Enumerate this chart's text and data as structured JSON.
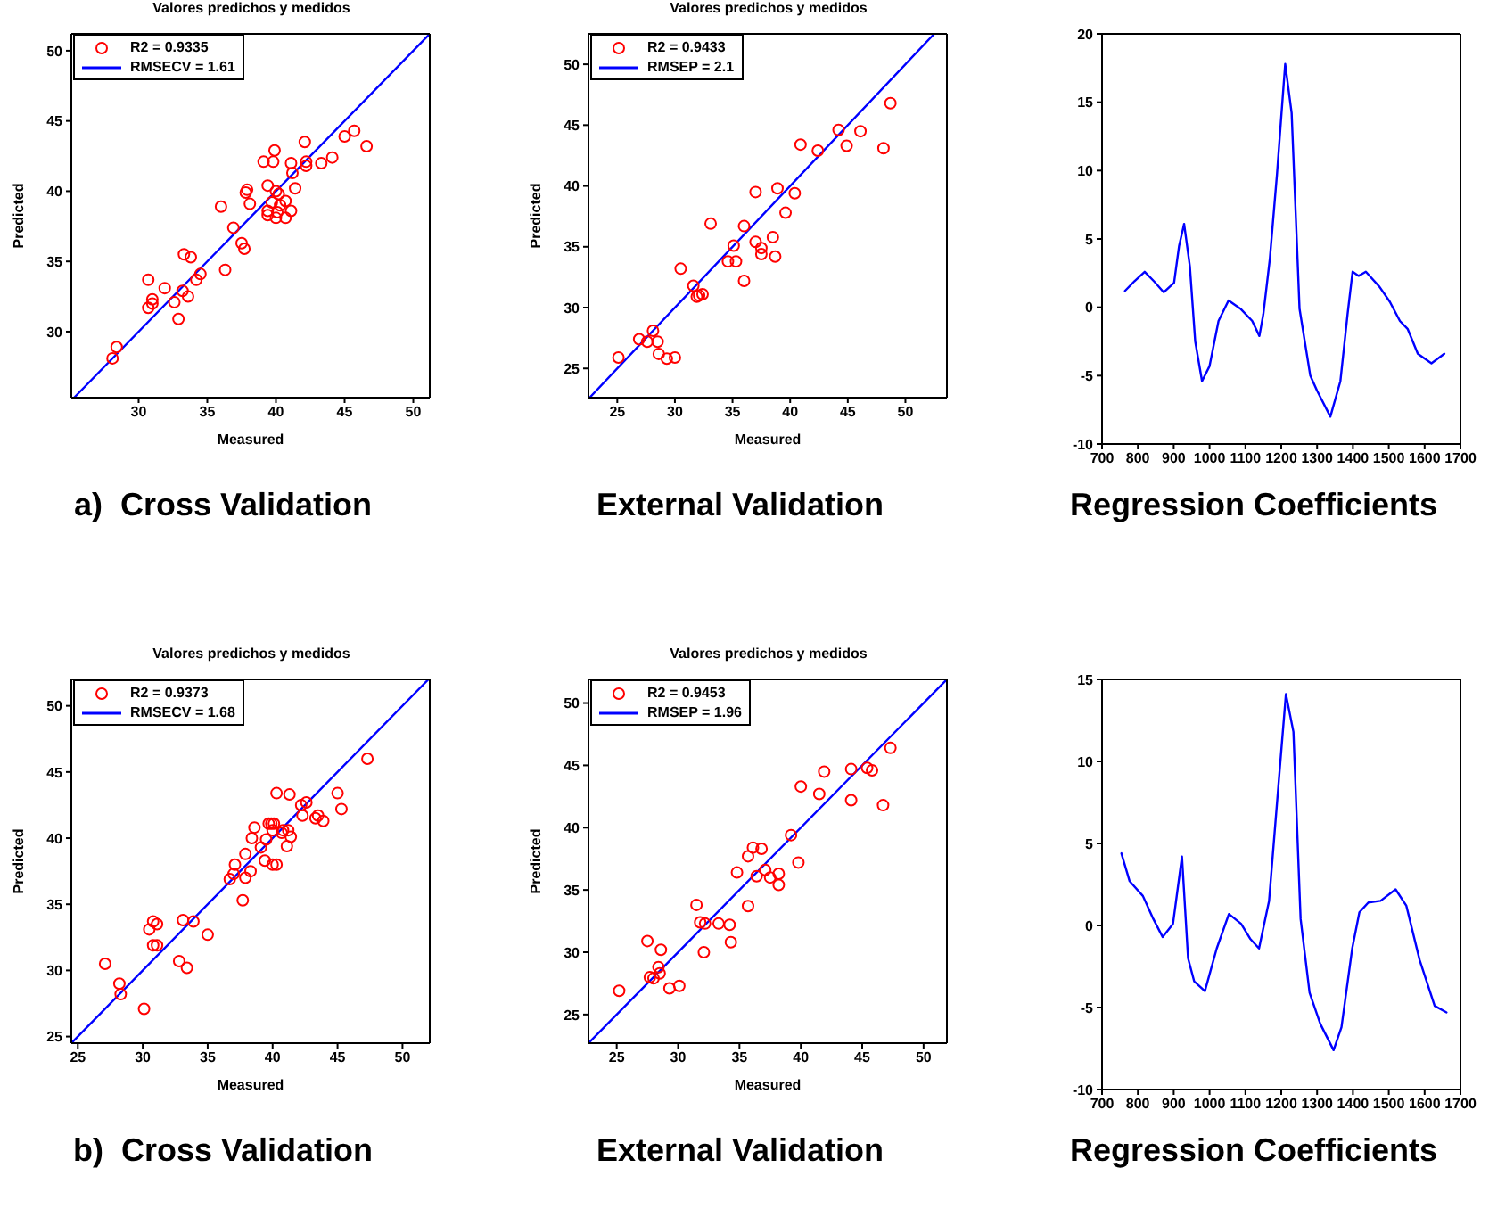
{
  "chart_data": [
    {
      "type": "scatter",
      "title": "Valores predichos y medidos",
      "xlabel": "Measured",
      "ylabel": "Predicted",
      "xlim": [
        25.1,
        51.2
      ],
      "ylim": [
        25.3,
        51.2
      ],
      "xticks": [
        30,
        35,
        40,
        45,
        50
      ],
      "yticks": [
        30,
        35,
        40,
        45,
        50
      ],
      "legend": "top left",
      "annotations": [
        "a)  Cross Validation"
      ],
      "series": [
        {
          "name": "R2 = 0.9335",
          "color": "#ff0000",
          "marker": "circle",
          "x": [
            28.1,
            28.4,
            30.7,
            30.7,
            31.0,
            31.0,
            31.9,
            32.6,
            32.9,
            33.2,
            33.3,
            33.6,
            33.8,
            34.2,
            34.5,
            36.0,
            36.3,
            36.9,
            37.5,
            37.7,
            37.8,
            37.9,
            38.1,
            39.1,
            39.4,
            39.4,
            39.4,
            39.7,
            39.8,
            39.9,
            40.0,
            40.1,
            40.0,
            40.2,
            40.3,
            40.7,
            40.7,
            41.1,
            41.1,
            41.2,
            41.4,
            42.1,
            42.2,
            42.2,
            43.3,
            44.1,
            45.0,
            45.7,
            46.6
          ],
          "values": [
            28.1,
            28.9,
            33.7,
            31.7,
            32.3,
            32.0,
            33.1,
            32.1,
            30.9,
            32.9,
            35.5,
            32.5,
            35.3,
            33.7,
            34.1,
            38.9,
            34.4,
            37.4,
            36.3,
            35.9,
            39.9,
            40.1,
            39.1,
            42.1,
            40.4,
            38.6,
            38.3,
            39.2,
            42.1,
            42.9,
            40.0,
            38.5,
            38.1,
            39.8,
            39.0,
            39.3,
            38.1,
            38.6,
            42.0,
            41.3,
            40.2,
            43.5,
            42.1,
            41.8,
            42.0,
            42.4,
            43.9,
            44.3,
            43.2
          ]
        },
        {
          "type": "line",
          "name": "RMSECV = 1.61",
          "color": "#0000ff",
          "x": [
            25.3,
            51.2
          ],
          "values": [
            25.3,
            51.2
          ]
        }
      ]
    },
    {
      "type": "scatter",
      "title": "Valores predichos y medidos",
      "xlabel": "Measured",
      "ylabel": "Predicted",
      "xlim": [
        22.5,
        53.6
      ],
      "ylim": [
        22.6,
        52.5
      ],
      "xticks": [
        25,
        30,
        35,
        40,
        45,
        50
      ],
      "yticks": [
        25,
        30,
        35,
        40,
        45,
        50
      ],
      "legend": "top left",
      "annotations": [
        "External Validation"
      ],
      "series": [
        {
          "name": "R2 = 0.9433",
          "color": "#ff0000",
          "marker": "circle",
          "x": [
            25.1,
            26.9,
            27.6,
            28.1,
            28.5,
            28.6,
            29.3,
            30.0,
            30.5,
            31.6,
            31.9,
            32.1,
            32.4,
            33.1,
            34.6,
            35.1,
            35.3,
            36.0,
            36.0,
            37.0,
            37.0,
            37.5,
            37.5,
            38.5,
            38.7,
            38.9,
            39.6,
            40.4,
            40.9,
            42.4,
            44.2,
            44.9,
            46.1,
            48.1,
            48.7
          ],
          "values": [
            25.9,
            27.4,
            27.2,
            28.1,
            27.2,
            26.2,
            25.8,
            25.9,
            33.2,
            31.8,
            30.9,
            31.0,
            31.1,
            36.9,
            33.8,
            35.1,
            33.8,
            36.7,
            32.2,
            39.5,
            35.4,
            34.9,
            34.4,
            35.8,
            34.2,
            39.8,
            37.8,
            39.4,
            43.4,
            42.9,
            44.6,
            43.3,
            44.5,
            43.1,
            46.8
          ]
        },
        {
          "type": "line",
          "name": "RMSEP = 2.1",
          "color": "#0000ff",
          "x": [
            22.6,
            52.5
          ],
          "values": [
            22.6,
            52.5
          ]
        }
      ]
    },
    {
      "type": "line",
      "xlim": [
        700,
        1700
      ],
      "ylim": [
        -10,
        20
      ],
      "xticks": [
        700,
        800,
        900,
        1000,
        1100,
        1200,
        1300,
        1400,
        1500,
        1600,
        1700
      ],
      "yticks": [
        -10,
        -5,
        0,
        5,
        10,
        15,
        20
      ],
      "annotations": [
        "Regression Coefficients"
      ],
      "series": [
        {
          "color": "#0000ff",
          "x": [
            764,
            790,
            819,
            845,
            872,
            901,
            915,
            929,
            945,
            960,
            979,
            1000,
            1025,
            1053,
            1086,
            1119,
            1139,
            1150,
            1168,
            1188,
            1211,
            1229,
            1251,
            1281,
            1300,
            1337,
            1365,
            1385,
            1399,
            1416,
            1436,
            1474,
            1503,
            1531,
            1553,
            1581,
            1619,
            1655
          ],
          "values": [
            1.2,
            1.9,
            2.6,
            1.9,
            1.1,
            1.8,
            4.5,
            6.1,
            3.0,
            -2.5,
            -5.4,
            -4.3,
            -1.0,
            0.5,
            -0.1,
            -1.0,
            -2.1,
            -0.5,
            3.5,
            9.7,
            17.8,
            14.2,
            -0.1,
            -5.0,
            -6.1,
            -8.0,
            -5.4,
            -0.5,
            2.6,
            2.3,
            2.6,
            1.5,
            0.4,
            -1.0,
            -1.6,
            -3.4,
            -4.1,
            -3.4
          ]
        }
      ]
    },
    {
      "type": "scatter",
      "title": "Valores predichos y medidos",
      "xlabel": "Measured",
      "ylabel": "Predicted",
      "xlim": [
        24.5,
        52.1
      ],
      "ylim": [
        24.5,
        52
      ],
      "xticks": [
        25,
        30,
        35,
        40,
        45,
        50
      ],
      "yticks": [
        25,
        30,
        35,
        40,
        45,
        50
      ],
      "legend": "top left",
      "annotations": [
        "b)  Cross Validation"
      ],
      "series": [
        {
          "name": "R2 = 0.9373",
          "color": "#ff0000",
          "marker": "circle",
          "x": [
            27.1,
            28.2,
            28.3,
            30.1,
            30.5,
            30.8,
            31.1,
            30.8,
            31.1,
            32.8,
            33.1,
            33.4,
            33.9,
            35.0,
            36.7,
            37.0,
            37.1,
            37.7,
            37.9,
            37.9,
            38.3,
            38.4,
            38.6,
            39.1,
            39.4,
            39.5,
            39.7,
            39.9,
            40.0,
            40.1,
            40.0,
            40.3,
            40.3,
            40.7,
            40.8,
            41.1,
            41.2,
            41.4,
            41.3,
            42.2,
            42.3,
            42.6,
            43.3,
            43.5,
            43.9,
            45.0,
            45.3,
            47.3
          ],
          "values": [
            30.5,
            29.0,
            28.2,
            27.1,
            33.1,
            33.7,
            33.5,
            31.9,
            31.9,
            30.7,
            33.8,
            30.2,
            33.7,
            32.7,
            36.9,
            37.3,
            38.0,
            35.3,
            38.8,
            37.0,
            37.5,
            40.0,
            40.8,
            39.3,
            38.3,
            39.9,
            41.1,
            41.1,
            40.6,
            41.1,
            38.0,
            38.0,
            43.4,
            40.4,
            40.6,
            39.4,
            40.6,
            40.1,
            43.3,
            42.5,
            41.7,
            42.7,
            41.5,
            41.7,
            41.3,
            43.4,
            42.2,
            46.0
          ]
        },
        {
          "type": "line",
          "name": "RMSECV = 1.68",
          "color": "#0000ff",
          "x": [
            24.5,
            52.0
          ],
          "values": [
            24.5,
            52.0
          ]
        }
      ]
    },
    {
      "type": "scatter",
      "title": "Valores predichos y medidos",
      "xlabel": "Measured",
      "ylabel": "Predicted",
      "xlim": [
        22.7,
        51.9
      ],
      "ylim": [
        22.7,
        51.9
      ],
      "xticks": [
        25,
        30,
        35,
        40,
        45,
        50
      ],
      "yticks": [
        25,
        30,
        35,
        40,
        45,
        50
      ],
      "legend": "top left",
      "annotations": [
        "External Validation"
      ],
      "series": [
        {
          "name": "R2 = 0.9453",
          "color": "#ff0000",
          "marker": "circle",
          "x": [
            25.2,
            27.5,
            27.7,
            28.0,
            28.4,
            28.5,
            28.6,
            29.3,
            30.1,
            31.5,
            31.8,
            32.1,
            32.2,
            33.3,
            34.2,
            34.3,
            34.8,
            35.7,
            35.7,
            36.1,
            36.4,
            36.8,
            37.1,
            37.5,
            38.2,
            38.2,
            39.2,
            39.8,
            40.0,
            41.5,
            41.9,
            44.1,
            44.1,
            45.4,
            45.8,
            46.7,
            47.3
          ],
          "values": [
            26.9,
            30.9,
            28.0,
            27.9,
            28.8,
            28.3,
            30.2,
            27.1,
            27.3,
            33.8,
            32.4,
            30.0,
            32.3,
            32.3,
            32.2,
            30.8,
            36.4,
            37.7,
            33.7,
            38.4,
            36.1,
            38.3,
            36.6,
            36.0,
            36.3,
            35.4,
            39.4,
            37.2,
            43.3,
            42.7,
            44.5,
            44.7,
            42.2,
            44.8,
            44.6,
            41.8,
            46.4
          ]
        },
        {
          "type": "line",
          "name": "RMSEP = 1.96",
          "color": "#0000ff",
          "x": [
            22.7,
            51.9
          ],
          "values": [
            22.7,
            51.9
          ]
        }
      ]
    },
    {
      "type": "line",
      "xlim": [
        700,
        1700
      ],
      "ylim": [
        -10,
        15
      ],
      "xticks": [
        700,
        800,
        900,
        1000,
        1100,
        1200,
        1300,
        1400,
        1500,
        1600,
        1700
      ],
      "yticks": [
        -10,
        -5,
        0,
        5,
        10,
        15
      ],
      "annotations": [
        "Regression Coefficients"
      ],
      "series": [
        {
          "color": "#0000ff",
          "x": [
            754,
            777,
            814,
            843,
            869,
            898,
            923,
            940,
            957,
            987,
            1020,
            1054,
            1088,
            1113,
            1138,
            1166,
            1192,
            1213,
            1234,
            1254,
            1279,
            1309,
            1346,
            1368,
            1398,
            1418,
            1443,
            1477,
            1519,
            1549,
            1586,
            1628,
            1661
          ],
          "values": [
            4.4,
            2.7,
            1.8,
            0.4,
            -0.7,
            0.1,
            4.2,
            -2.0,
            -3.4,
            -4.0,
            -1.4,
            0.7,
            0.1,
            -0.8,
            -1.4,
            1.5,
            8.5,
            14.1,
            11.8,
            0.4,
            -4.1,
            -6.0,
            -7.6,
            -6.2,
            -1.4,
            0.8,
            1.4,
            1.5,
            2.2,
            1.2,
            -2.1,
            -4.9,
            -5.3
          ]
        }
      ]
    }
  ]
}
